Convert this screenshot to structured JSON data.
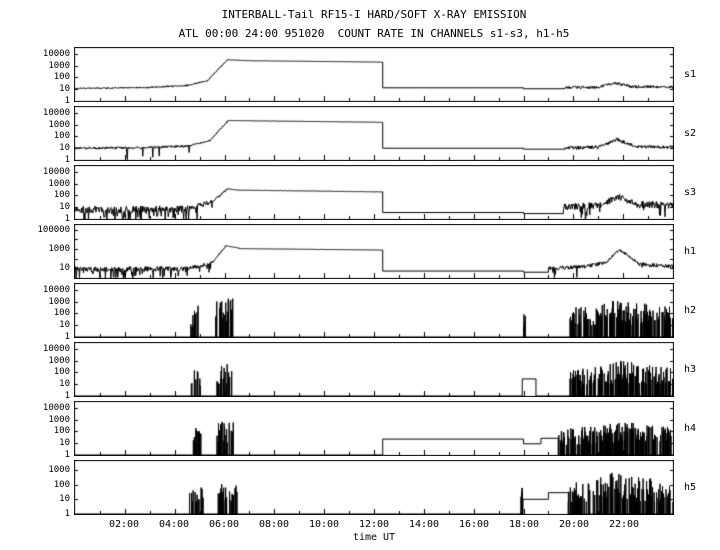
{
  "chart_data": {
    "type": "line",
    "title": "INTERBALL-Tail RF15-I HARD/SOFT X-RAY EMISSION",
    "subtitle": "ATL 00:00 24:00 951020  COUNT RATE IN CHANNELS s1-s3, h1-h5",
    "xlabel": "time UT",
    "yscale": "log",
    "x_range_hours": [
      0,
      24
    ],
    "x_ticks": [
      "02:00",
      "04:00",
      "06:00",
      "08:00",
      "10:00",
      "12:00",
      "14:00",
      "16:00",
      "18:00",
      "20:00",
      "22:00"
    ],
    "line_color": "#000000",
    "background_color": "#ffffff",
    "panels": [
      {
        "name": "s1",
        "ymax_log": 4.5,
        "ytick_labels": [
          "10000",
          "1000",
          "100",
          "10",
          "1"
        ],
        "ytick_logs": [
          4,
          3,
          2,
          1,
          0
        ],
        "segments": [
          [
            "n",
            0,
            1.5,
            1.08,
            1.1,
            0.06
          ],
          [
            "n",
            1.5,
            3.0,
            1.1,
            1.15,
            0.07
          ],
          [
            "n",
            3.0,
            4.5,
            1.15,
            1.32,
            0.07
          ],
          [
            "n",
            4.5,
            5.3,
            1.32,
            1.7,
            0.06
          ],
          [
            "n",
            5.3,
            6.1,
            1.7,
            3.45,
            0.05
          ],
          [
            "n",
            6.1,
            7.0,
            3.5,
            3.42,
            0.015
          ],
          [
            "n",
            7.0,
            12.35,
            3.42,
            3.3,
            0.01
          ],
          [
            "f",
            12.35,
            18.0,
            1.12
          ],
          [
            "f",
            18.0,
            19.6,
            1.04
          ],
          [
            "n",
            19.6,
            21.0,
            1.12,
            1.18,
            0.12
          ],
          [
            "n",
            21.0,
            21.7,
            1.2,
            1.52,
            0.12
          ],
          [
            "n",
            21.7,
            22.3,
            1.52,
            1.25,
            0.12
          ],
          [
            "n",
            22.3,
            24.0,
            1.22,
            1.18,
            0.12
          ]
        ]
      },
      {
        "name": "s2",
        "ymax_log": 4.5,
        "ytick_labels": [
          "10000",
          "1000",
          "100",
          "10",
          "1"
        ],
        "ytick_logs": [
          4,
          3,
          2,
          1,
          0
        ],
        "segments": [
          [
            "n",
            0,
            3.0,
            1.0,
            1.05,
            0.1,
            0.05
          ],
          [
            "n",
            3.0,
            4.6,
            1.05,
            1.22,
            0.1,
            0.05
          ],
          [
            "n",
            4.6,
            5.4,
            1.22,
            1.62,
            0.08
          ],
          [
            "n",
            5.4,
            6.15,
            1.62,
            3.35,
            0.05
          ],
          [
            "n",
            6.15,
            12.35,
            3.35,
            3.2,
            0.012
          ],
          [
            "f",
            12.35,
            18.0,
            1.0
          ],
          [
            "f",
            18.0,
            19.6,
            0.92
          ],
          [
            "n",
            19.6,
            21.0,
            1.02,
            1.08,
            0.15
          ],
          [
            "n",
            21.0,
            21.75,
            1.1,
            1.75,
            0.14
          ],
          [
            "n",
            21.75,
            22.4,
            1.75,
            1.22,
            0.14
          ],
          [
            "n",
            22.4,
            24.0,
            1.15,
            1.1,
            0.15
          ]
        ]
      },
      {
        "name": "s3",
        "ymax_log": 4.5,
        "ytick_labels": [
          "10000",
          "1000",
          "100",
          "10",
          "1"
        ],
        "ytick_logs": [
          4,
          3,
          2,
          1,
          0
        ],
        "segments": [
          [
            "n",
            0,
            4.6,
            0.78,
            0.85,
            0.3,
            0.22
          ],
          [
            "n",
            4.6,
            5.5,
            0.95,
            1.45,
            0.22,
            0.1
          ],
          [
            "n",
            5.5,
            6.1,
            1.45,
            2.52,
            0.1
          ],
          [
            "n",
            6.1,
            6.6,
            2.55,
            2.45,
            0.02
          ],
          [
            "n",
            6.6,
            12.35,
            2.45,
            2.3,
            0.015
          ],
          [
            "f",
            12.35,
            18.0,
            0.55
          ],
          [
            "f",
            18.0,
            19.6,
            0.46
          ],
          [
            "n",
            19.6,
            21.1,
            1.0,
            1.15,
            0.3,
            0.1
          ],
          [
            "n",
            21.1,
            21.8,
            1.2,
            1.9,
            0.25
          ],
          [
            "n",
            21.8,
            22.5,
            1.9,
            1.3,
            0.25
          ],
          [
            "n",
            22.5,
            24.0,
            1.25,
            1.15,
            0.3,
            0.08
          ]
        ]
      },
      {
        "name": "h1",
        "ymax_log": 5.5,
        "ytick_labels": [
          "100000",
          "1000",
          "10"
        ],
        "ytick_logs": [
          5,
          3,
          1
        ],
        "segments": [
          [
            "n",
            0,
            4.6,
            0.92,
            0.95,
            0.28,
            0.2
          ],
          [
            "n",
            4.6,
            5.5,
            1.0,
            1.55,
            0.2,
            0.08
          ],
          [
            "n",
            5.5,
            6.05,
            1.55,
            3.32,
            0.08
          ],
          [
            "n",
            6.05,
            6.6,
            3.35,
            3.1,
            0.02
          ],
          [
            "n",
            6.6,
            12.35,
            3.05,
            2.9,
            0.012
          ],
          [
            "f",
            12.35,
            18.0,
            0.72
          ],
          [
            "f",
            18.0,
            19.0,
            0.6
          ],
          [
            "n",
            19.0,
            20.5,
            1.0,
            1.2,
            0.2,
            0.06
          ],
          [
            "n",
            20.5,
            21.3,
            1.2,
            1.6,
            0.2
          ],
          [
            "n",
            21.3,
            21.85,
            1.6,
            2.95,
            0.12
          ],
          [
            "n",
            21.85,
            22.6,
            2.95,
            1.6,
            0.15
          ],
          [
            "n",
            22.6,
            24.0,
            1.45,
            1.2,
            0.2,
            0.06
          ]
        ]
      },
      {
        "name": "h2",
        "ymax_log": 4.5,
        "ytick_labels": [
          "10000",
          "1000",
          "100",
          "10",
          "1"
        ],
        "ytick_logs": [
          4,
          3,
          2,
          1,
          0
        ],
        "segments": [
          [
            "f",
            0,
            4.65,
            0
          ],
          [
            "s",
            4.65,
            5.0,
            2.2,
            2.8,
            0.35
          ],
          [
            "f",
            5.0,
            5.65,
            0
          ],
          [
            "s",
            5.65,
            6.35,
            3.0,
            3.5,
            0.5
          ],
          [
            "f",
            6.35,
            18.0,
            0
          ],
          [
            "s",
            18.0,
            18.07,
            2.0,
            2.0,
            0.95
          ],
          [
            "f",
            18.07,
            19.85,
            0
          ],
          [
            "s",
            19.85,
            21.1,
            2.5,
            2.7,
            0.55
          ],
          [
            "s",
            21.1,
            21.9,
            2.8,
            3.25,
            0.6
          ],
          [
            "s",
            21.9,
            22.5,
            3.1,
            2.9,
            0.6
          ],
          [
            "s",
            22.5,
            24.0,
            2.9,
            2.6,
            0.55
          ]
        ]
      },
      {
        "name": "h3",
        "ymax_log": 4.5,
        "ytick_labels": [
          "10000",
          "1000",
          "100",
          "10",
          "1"
        ],
        "ytick_logs": [
          4,
          3,
          2,
          1,
          0
        ],
        "segments": [
          [
            "f",
            0,
            4.65,
            0
          ],
          [
            "s",
            4.65,
            5.05,
            2.1,
            2.5,
            0.4
          ],
          [
            "f",
            5.05,
            5.7,
            0
          ],
          [
            "s",
            5.7,
            6.35,
            2.8,
            3.0,
            0.5
          ],
          [
            "f",
            6.35,
            17.95,
            0
          ],
          [
            "f",
            17.95,
            18.5,
            1.45
          ],
          [
            "f",
            18.5,
            19.85,
            0
          ],
          [
            "s",
            19.85,
            21.1,
            2.3,
            2.5,
            0.55
          ],
          [
            "s",
            21.1,
            21.9,
            2.6,
            3.1,
            0.6
          ],
          [
            "s",
            21.9,
            22.6,
            3.0,
            2.8,
            0.6
          ],
          [
            "s",
            22.6,
            24.0,
            2.7,
            2.5,
            0.55
          ]
        ]
      },
      {
        "name": "h4",
        "ymax_log": 4.5,
        "ytick_labels": [
          "10000",
          "1000",
          "100",
          "10",
          "1"
        ],
        "ytick_logs": [
          4,
          3,
          2,
          1,
          0
        ],
        "segments": [
          [
            "f",
            0,
            4.65,
            0
          ],
          [
            "s",
            4.65,
            5.05,
            2.2,
            2.6,
            0.4
          ],
          [
            "f",
            5.05,
            5.7,
            0
          ],
          [
            "s",
            5.7,
            6.35,
            2.8,
            3.0,
            0.5
          ],
          [
            "f",
            6.35,
            12.35,
            0
          ],
          [
            "f",
            12.35,
            18.0,
            1.35
          ],
          [
            "f",
            18.0,
            18.7,
            0.95
          ],
          [
            "f",
            18.7,
            19.4,
            1.42
          ],
          [
            "s",
            19.4,
            21.1,
            2.2,
            2.5,
            0.55
          ],
          [
            "s",
            21.1,
            21.9,
            2.6,
            3.0,
            0.6
          ],
          [
            "s",
            21.9,
            22.6,
            2.9,
            2.7,
            0.6
          ],
          [
            "s",
            22.6,
            24.0,
            2.6,
            2.4,
            0.55
          ]
        ]
      },
      {
        "name": "h5",
        "ymax_log": 3.6,
        "ytick_labels": [
          "1000",
          "100",
          "10",
          "1"
        ],
        "ytick_logs": [
          3,
          2,
          1,
          0
        ],
        "segments": [
          [
            "f",
            0,
            4.6,
            0
          ],
          [
            "s",
            4.6,
            5.2,
            1.6,
            2.0,
            0.45
          ],
          [
            "f",
            5.2,
            5.75,
            0
          ],
          [
            "s",
            5.75,
            6.5,
            2.0,
            2.2,
            0.6
          ],
          [
            "f",
            6.5,
            17.9,
            0
          ],
          [
            "s",
            17.9,
            17.98,
            1.9,
            1.9,
            0.95
          ],
          [
            "f",
            17.98,
            19.0,
            1.0
          ],
          [
            "f",
            19.0,
            19.8,
            1.45
          ],
          [
            "s",
            19.8,
            21.1,
            2.1,
            2.4,
            0.55
          ],
          [
            "s",
            21.1,
            21.75,
            2.5,
            3.0,
            0.6
          ],
          [
            "s",
            21.75,
            22.5,
            2.8,
            2.6,
            0.6
          ],
          [
            "s",
            22.5,
            24.0,
            2.5,
            2.3,
            0.55
          ]
        ]
      }
    ]
  }
}
